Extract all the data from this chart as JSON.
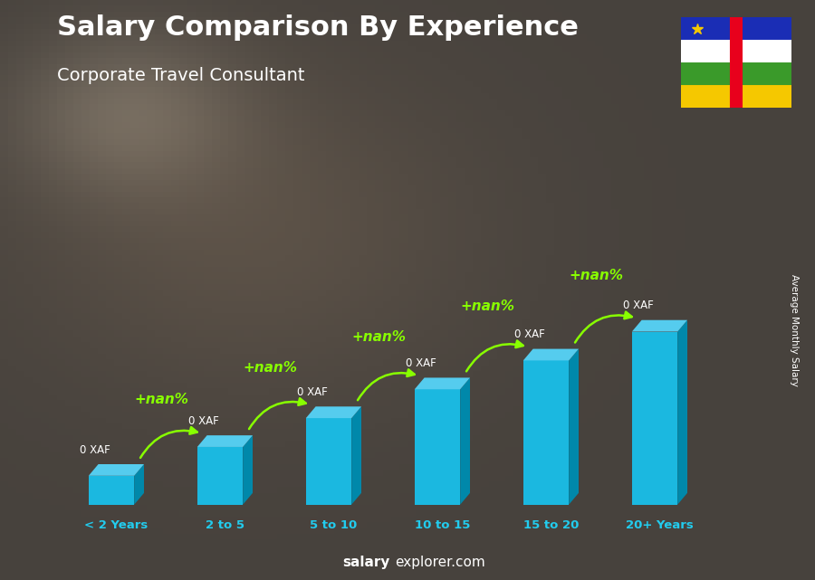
{
  "title": "Salary Comparison By Experience",
  "subtitle": "Corporate Travel Consultant",
  "categories": [
    "< 2 Years",
    "2 to 5",
    "5 to 10",
    "10 to 15",
    "15 to 20",
    "20+ Years"
  ],
  "values": [
    1,
    2,
    3,
    4,
    5,
    6
  ],
  "bar_labels": [
    "0 XAF",
    "0 XAF",
    "0 XAF",
    "0 XAF",
    "0 XAF",
    "0 XAF"
  ],
  "change_labels": [
    "+nan%",
    "+nan%",
    "+nan%",
    "+nan%",
    "+nan%"
  ],
  "ylabel": "Average Monthly Salary",
  "watermark_bold": "salary",
  "watermark_normal": "explorer.com",
  "face_color": "#1BB8E0",
  "side_color": "#0088AA",
  "top_color": "#55CCEE",
  "change_color": "#88FF00",
  "cat_color": "#22CCEE",
  "title_color": "#ffffff",
  "subtitle_color": "#ffffff",
  "bar_label_color": "#ffffff",
  "flag": {
    "blue": "#1A2DB5",
    "white": "#FFFFFF",
    "green": "#3A9A2A",
    "yellow": "#F5C800",
    "red": "#E8001C",
    "star": "#F5C800"
  }
}
